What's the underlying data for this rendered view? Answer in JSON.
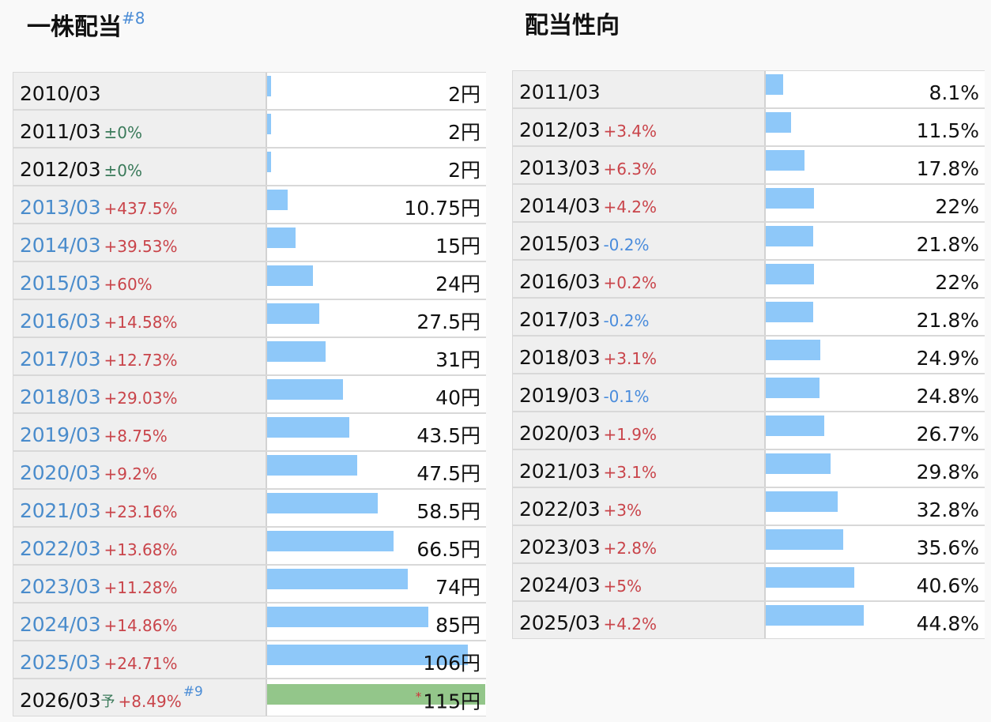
{
  "dividend": {
    "title": "一株配当",
    "ref": "#8",
    "unit": "円",
    "max": 115,
    "rows": [
      {
        "year": "2010/03",
        "change": "",
        "change_type": "none",
        "value": 2,
        "value_label": "2",
        "link": false
      },
      {
        "year": "2011/03",
        "change": "±0%",
        "change_type": "flat",
        "value": 2,
        "value_label": "2",
        "link": false
      },
      {
        "year": "2012/03",
        "change": "±0%",
        "change_type": "flat",
        "value": 2,
        "value_label": "2",
        "link": false
      },
      {
        "year": "2013/03",
        "change": "+437.5%",
        "change_type": "up",
        "value": 10.75,
        "value_label": "10.75",
        "link": true
      },
      {
        "year": "2014/03",
        "change": "+39.53%",
        "change_type": "up",
        "value": 15,
        "value_label": "15",
        "link": true
      },
      {
        "year": "2015/03",
        "change": "+60%",
        "change_type": "up",
        "value": 24,
        "value_label": "24",
        "link": true
      },
      {
        "year": "2016/03",
        "change": "+14.58%",
        "change_type": "up",
        "value": 27.5,
        "value_label": "27.5",
        "link": true
      },
      {
        "year": "2017/03",
        "change": "+12.73%",
        "change_type": "up",
        "value": 31,
        "value_label": "31",
        "link": true
      },
      {
        "year": "2018/03",
        "change": "+29.03%",
        "change_type": "up",
        "value": 40,
        "value_label": "40",
        "link": true
      },
      {
        "year": "2019/03",
        "change": "+8.75%",
        "change_type": "up",
        "value": 43.5,
        "value_label": "43.5",
        "link": true
      },
      {
        "year": "2020/03",
        "change": "+9.2%",
        "change_type": "up",
        "value": 47.5,
        "value_label": "47.5",
        "link": true
      },
      {
        "year": "2021/03",
        "change": "+23.16%",
        "change_type": "up",
        "value": 58.5,
        "value_label": "58.5",
        "link": true
      },
      {
        "year": "2022/03",
        "change": "+13.68%",
        "change_type": "up",
        "value": 66.5,
        "value_label": "66.5",
        "link": true
      },
      {
        "year": "2023/03",
        "change": "+11.28%",
        "change_type": "up",
        "value": 74,
        "value_label": "74",
        "link": true
      },
      {
        "year": "2024/03",
        "change": "+14.86%",
        "change_type": "up",
        "value": 85,
        "value_label": "85",
        "link": true
      },
      {
        "year": "2025/03",
        "change": "+24.71%",
        "change_type": "up",
        "value": 106,
        "value_label": "106",
        "link": true
      },
      {
        "year": "2026/03",
        "forecast_mark": "予",
        "change": "+8.49%",
        "change_type": "up",
        "ref": "#9",
        "value": 115,
        "value_label": "115",
        "star": "*",
        "link": false,
        "forecast": true
      }
    ]
  },
  "payout": {
    "title": "配当性向",
    "unit": "%",
    "max": 100,
    "rows": [
      {
        "year": "2011/03",
        "change": "",
        "change_type": "none",
        "value": 8.1,
        "value_label": "8.1"
      },
      {
        "year": "2012/03",
        "change": "+3.4%",
        "change_type": "up",
        "value": 11.5,
        "value_label": "11.5"
      },
      {
        "year": "2013/03",
        "change": "+6.3%",
        "change_type": "up",
        "value": 17.8,
        "value_label": "17.8"
      },
      {
        "year": "2014/03",
        "change": "+4.2%",
        "change_type": "up",
        "value": 22,
        "value_label": "22"
      },
      {
        "year": "2015/03",
        "change": "-0.2%",
        "change_type": "down",
        "value": 21.8,
        "value_label": "21.8"
      },
      {
        "year": "2016/03",
        "change": "+0.2%",
        "change_type": "up",
        "value": 22,
        "value_label": "22"
      },
      {
        "year": "2017/03",
        "change": "-0.2%",
        "change_type": "down",
        "value": 21.8,
        "value_label": "21.8"
      },
      {
        "year": "2018/03",
        "change": "+3.1%",
        "change_type": "up",
        "value": 24.9,
        "value_label": "24.9"
      },
      {
        "year": "2019/03",
        "change": "-0.1%",
        "change_type": "down",
        "value": 24.8,
        "value_label": "24.8"
      },
      {
        "year": "2020/03",
        "change": "+1.9%",
        "change_type": "up",
        "value": 26.7,
        "value_label": "26.7"
      },
      {
        "year": "2021/03",
        "change": "+3.1%",
        "change_type": "up",
        "value": 29.8,
        "value_label": "29.8"
      },
      {
        "year": "2022/03",
        "change": "+3%",
        "change_type": "up",
        "value": 32.8,
        "value_label": "32.8"
      },
      {
        "year": "2023/03",
        "change": "+2.8%",
        "change_type": "up",
        "value": 35.6,
        "value_label": "35.6"
      },
      {
        "year": "2024/03",
        "change": "+5%",
        "change_type": "up",
        "value": 40.6,
        "value_label": "40.6"
      },
      {
        "year": "2025/03",
        "change": "+4.2%",
        "change_type": "up",
        "value": 44.8,
        "value_label": "44.8"
      }
    ]
  },
  "colors": {
    "bar": "#8ec8f9",
    "forecast_bar": "#93c68a",
    "up": "#c9444a",
    "down": "#4a8cdc",
    "flat": "#3a7a5a",
    "link": "#4a8ccc"
  }
}
